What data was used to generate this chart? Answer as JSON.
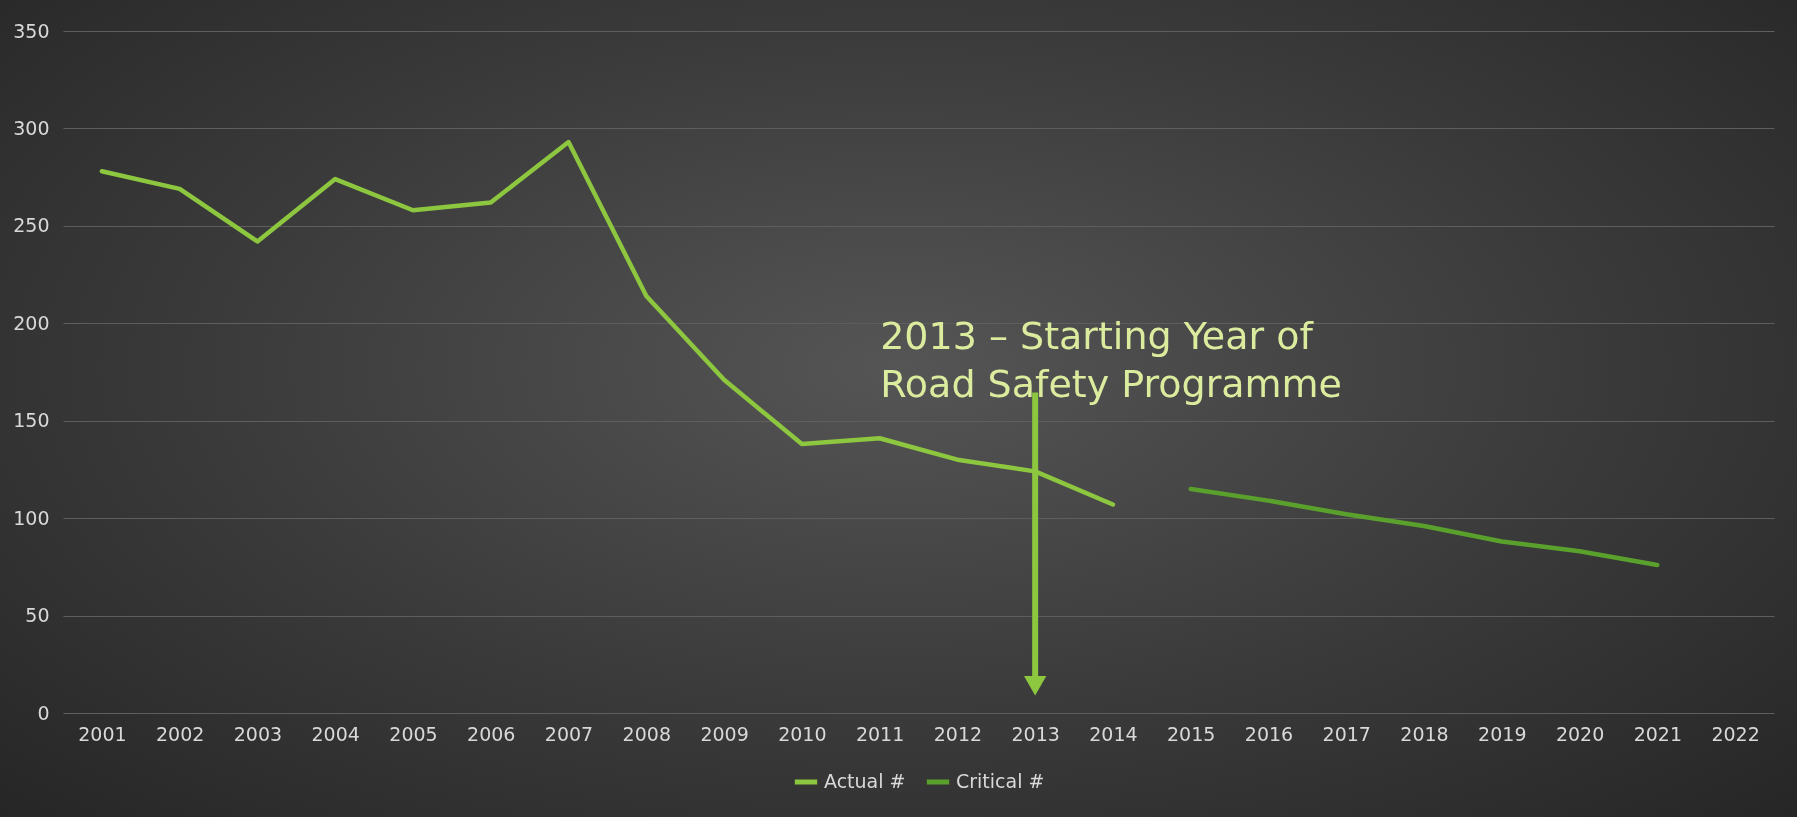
{
  "chart_data": {
    "type": "line",
    "categories": [
      "2001",
      "2002",
      "2003",
      "2004",
      "2005",
      "2006",
      "2007",
      "2008",
      "2009",
      "2010",
      "2011",
      "2012",
      "2013",
      "2014",
      "2015",
      "2016",
      "2017",
      "2018",
      "2019",
      "2020",
      "2021",
      "2022"
    ],
    "series": [
      {
        "name": "Actual #",
        "color": "#8dc63f",
        "values": [
          278,
          269,
          242,
          274,
          258,
          262,
          293,
          214,
          171,
          138,
          141,
          130,
          124,
          107,
          null,
          null,
          null,
          null,
          null,
          null,
          null,
          null
        ]
      },
      {
        "name": "Critical #",
        "color": "#5aa02c",
        "values": [
          null,
          null,
          null,
          null,
          null,
          null,
          null,
          null,
          null,
          null,
          null,
          null,
          null,
          null,
          115,
          109,
          102,
          96,
          88,
          83,
          76,
          null
        ]
      }
    ],
    "ylim": [
      0,
      350
    ],
    "yticks": [
      0,
      50,
      100,
      150,
      200,
      250,
      300,
      350
    ],
    "grid": "y",
    "legend": "bottom",
    "marker": "none",
    "line_style": "solid",
    "ref_lines": [
      {
        "axis": "x",
        "value": "2013",
        "label": "2013 – Starting Year of Road Safety Programme",
        "color": "#8dc63f"
      }
    ]
  }
}
